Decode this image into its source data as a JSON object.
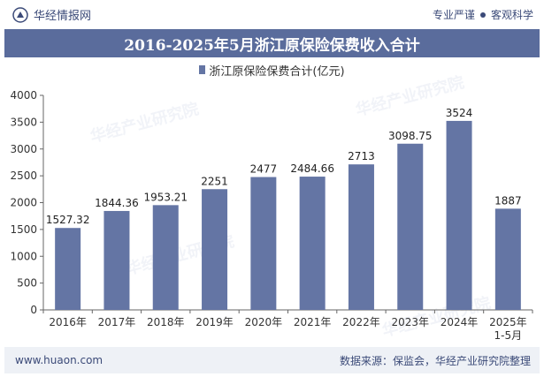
{
  "header": {
    "brand": "华经情报网",
    "slogan_left": "专业严谨",
    "slogan_right": "客观科学"
  },
  "footer": {
    "url": "www.huaon.com",
    "source": "数据来源：保监会，华经产业研究院整理"
  },
  "colors": {
    "bar": "#6475a4",
    "title_bg": "#5a6c9c",
    "brand": "#3b4a78"
  },
  "chart_data": {
    "type": "bar",
    "title": "2016-2025年5月浙江原保险保费收入合计",
    "legend": "浙江原保险保费合计(亿元)",
    "legend_position": "top",
    "grid": false,
    "categories": [
      "2016年",
      "2017年",
      "2018年",
      "2019年",
      "2020年",
      "2021年",
      "2022年",
      "2023年",
      "2024年",
      "2025年\n1-5月"
    ],
    "values": [
      1527.32,
      1844.36,
      1953.21,
      2251,
      2477,
      2484.66,
      2713,
      3098.75,
      3524,
      1887
    ],
    "value_labels": [
      "1527.32",
      "1844.36",
      "1953.21",
      "2251",
      "2477",
      "2484.66",
      "2713",
      "3098.75",
      "3524",
      "1887"
    ],
    "ylim": [
      0,
      4000
    ],
    "yticks": [
      0,
      500,
      1000,
      1500,
      2000,
      2500,
      3000,
      3500,
      4000
    ],
    "xlabel": "",
    "ylabel": ""
  }
}
